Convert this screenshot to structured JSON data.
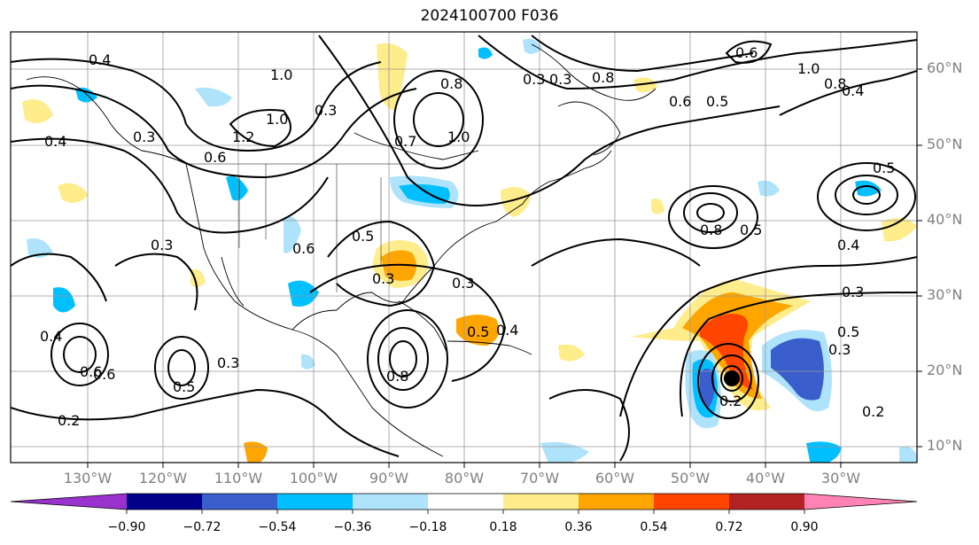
{
  "title": "2024100700 F036",
  "lat_labels": [
    "60°N",
    "50°N",
    "40°N",
    "30°N",
    "20°N",
    "10°N"
  ],
  "lon_labels": [
    "130°W",
    "120°W",
    "110°W",
    "100°W",
    "90°W",
    "80°W",
    "70°W",
    "60°W",
    "50°W",
    "40°W",
    "30°W"
  ],
  "colorbar": {
    "ticks": [
      "−0.90",
      "−0.72",
      "−0.54",
      "−0.36",
      "−0.18",
      "0.18",
      "0.36",
      "0.54",
      "0.72",
      "0.90"
    ],
    "colors": [
      "#9932cc",
      "#00008b",
      "#3a5fcd",
      "#00bfff",
      "#aee3fb",
      "#ffffff",
      "#ffec8b",
      "#ffa500",
      "#ff4500",
      "#b22222",
      "#ff83b4"
    ]
  },
  "contour_labels": [
    "0.4",
    "0.3",
    "1.0",
    "0.2",
    "0.8",
    "0.6",
    "0.3",
    "0.8",
    "0.6",
    "0.5",
    "1.0",
    "0.8",
    "0.4",
    "0.3",
    "1.0",
    "1.2",
    "0.6",
    "0.7",
    "1.0",
    "0.3",
    "0.4",
    "0.5",
    "0.6",
    "0.3",
    "0.8",
    "0.5",
    "0.4",
    "0.3",
    "0.5",
    "0.3",
    "0.6",
    "0.3",
    "0.5",
    "0.4",
    "0.2",
    "0.3",
    "0.5",
    "0.4",
    "0.5",
    "0.3",
    "0.8",
    "0.6",
    "0.2"
  ],
  "storm_marker": "hurricane-center"
}
